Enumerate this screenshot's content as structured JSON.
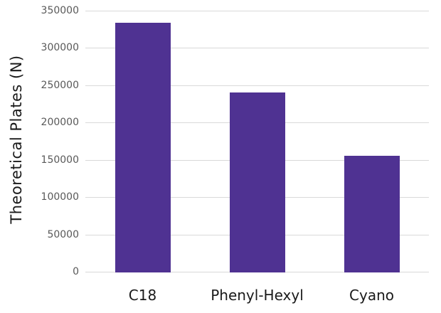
{
  "figure": {
    "background": "#FFFFFF"
  },
  "chart_data": {
    "type": "bar",
    "title": "",
    "categories": [
      "C18",
      "Phenyl-Hexyl",
      "Cyano"
    ],
    "values": [
      335000,
      241000,
      156000
    ],
    "series": [
      {
        "name": "Theoretical Plates",
        "values": [
          335000,
          241000,
          156000
        ]
      }
    ],
    "xlabel": "",
    "ylabel": "Theoretical Plates (N)",
    "ylim": [
      0,
      350000
    ],
    "yticks": [
      0,
      50000,
      100000,
      150000,
      200000,
      250000,
      300000,
      350000
    ],
    "ytick_labels": [
      "0",
      "50000",
      "100000",
      "150000",
      "200000",
      "250000",
      "300000",
      "350000"
    ],
    "grid": "horizontal",
    "legend": "none",
    "bar_color": "#4F3292",
    "gridline_color": "#D9D9D9",
    "tick_label_color": "#595959",
    "axis_text_color": "#1A1A1A"
  }
}
